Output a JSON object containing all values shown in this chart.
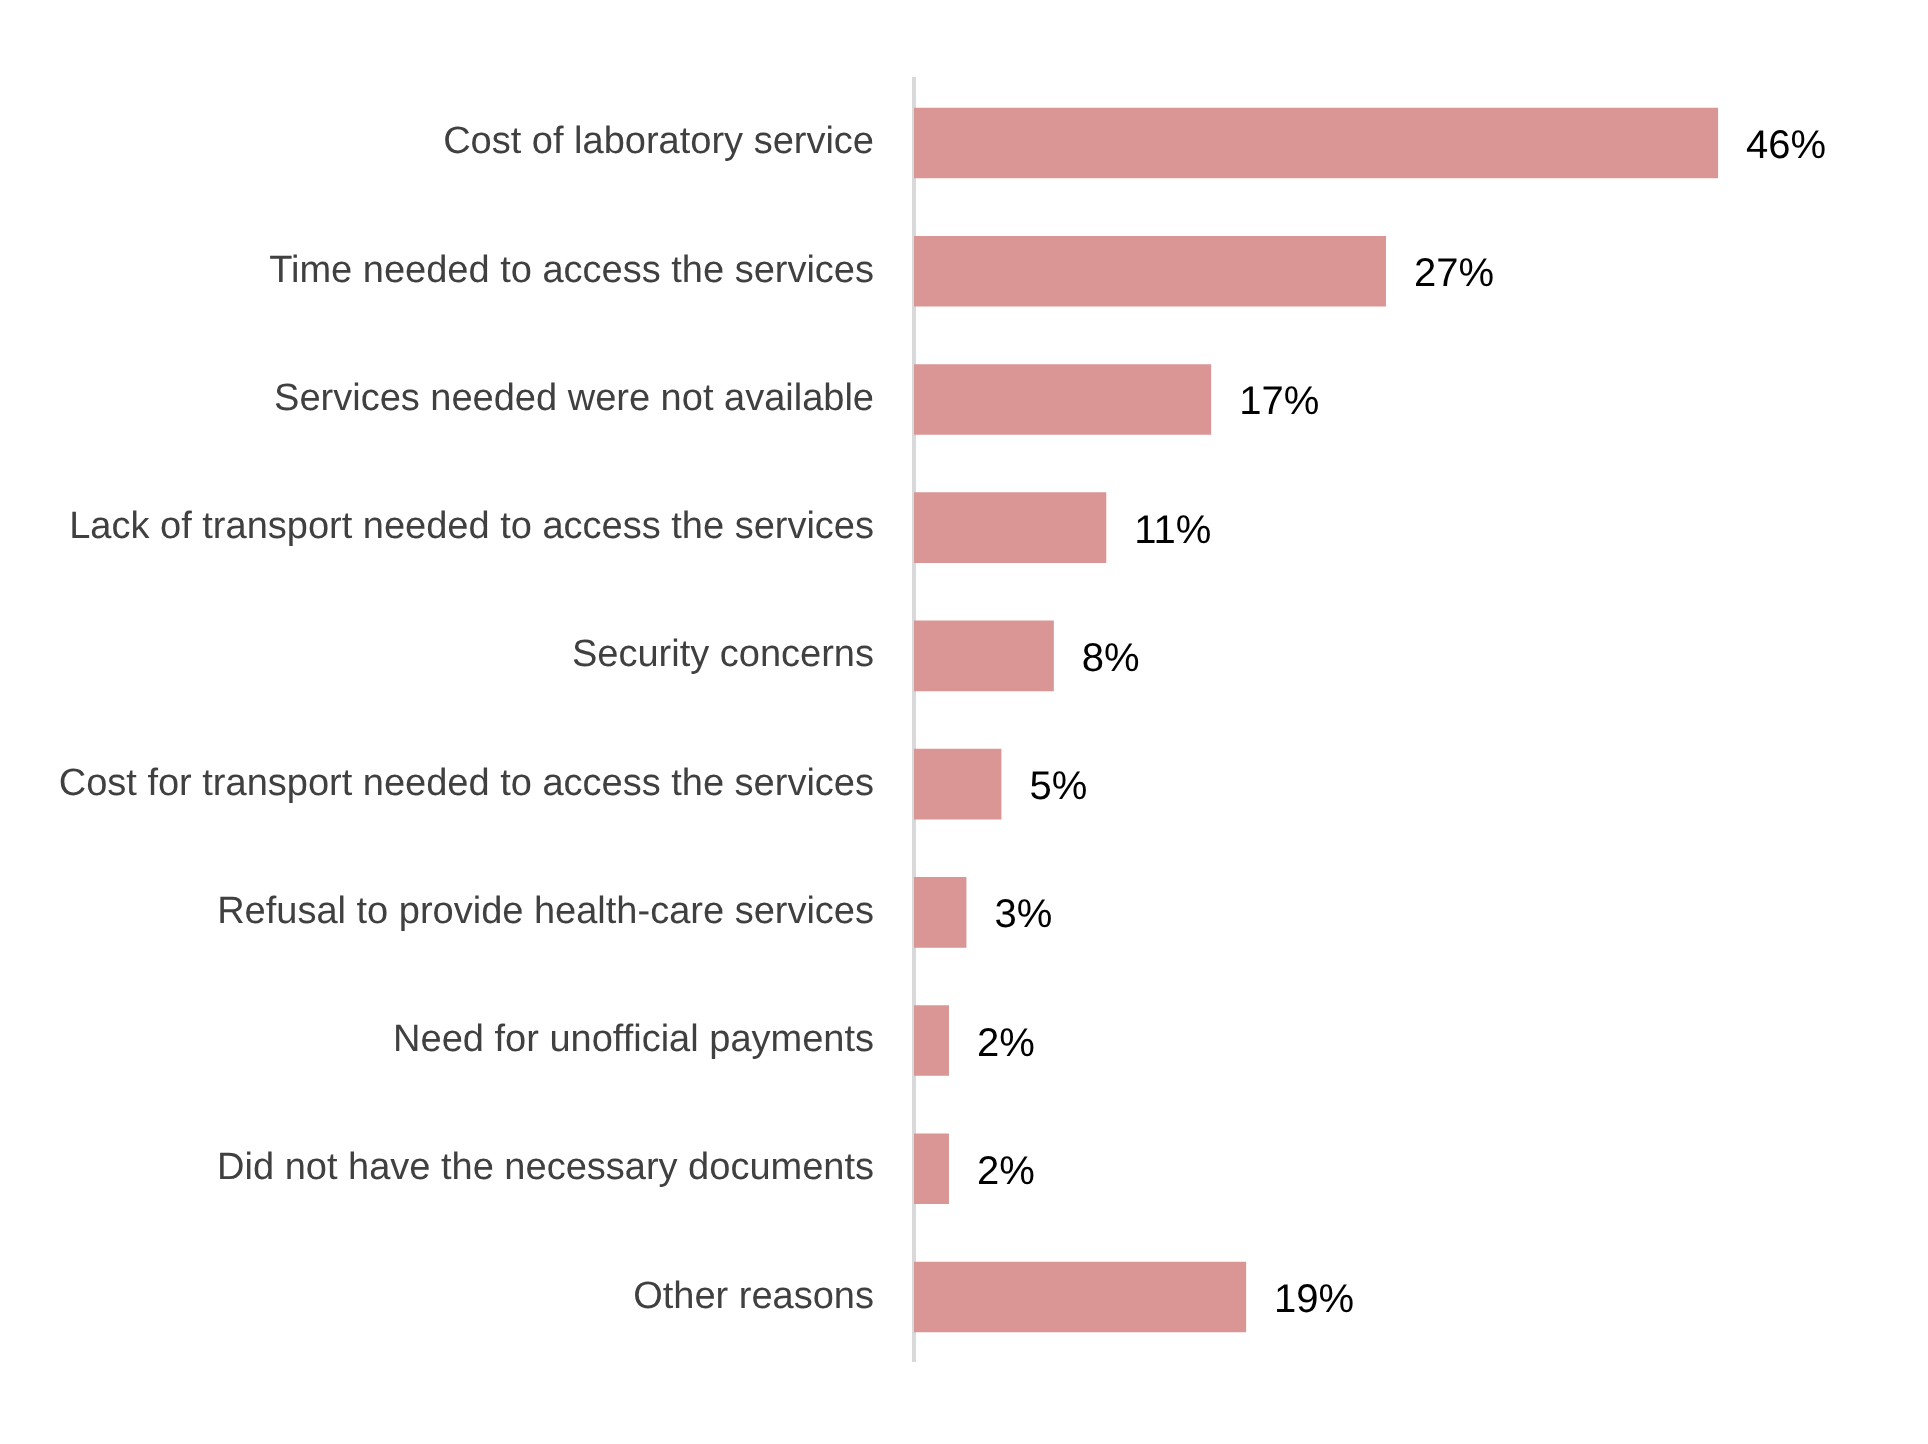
{
  "chart_data": {
    "type": "bar",
    "orientation": "horizontal",
    "categories": [
      "Cost of laboratory service",
      "Time needed to access the services",
      "Services needed were not available",
      "Lack of transport needed to access the services",
      "Security concerns",
      "Cost for transport needed to access the services",
      "Refusal to provide health-care services",
      "Need for unofficial payments",
      "Did not have the necessary documents",
      "Other reasons"
    ],
    "values": [
      46,
      27,
      17,
      11,
      8,
      5,
      3,
      2,
      2,
      19
    ],
    "value_labels": [
      "46%",
      "27%",
      "17%",
      "11%",
      "8%",
      "5%",
      "3%",
      "2%",
      "2%",
      "19%"
    ],
    "color": "#d99694"
  }
}
